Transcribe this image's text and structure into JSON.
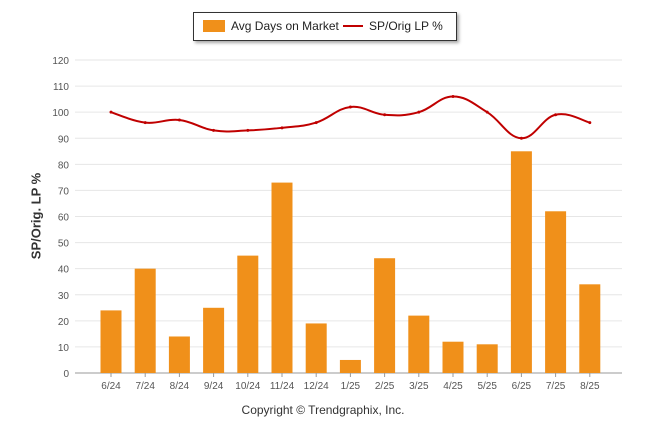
{
  "chart_data": {
    "type": "bar",
    "categories": [
      "6/24",
      "7/24",
      "8/24",
      "9/24",
      "10/24",
      "11/24",
      "12/24",
      "1/25",
      "2/25",
      "3/25",
      "4/25",
      "5/25",
      "6/25",
      "7/25",
      "8/25"
    ],
    "series": [
      {
        "name": "Avg Days on Market",
        "type": "bar",
        "color": "#f0901a",
        "values": [
          24,
          40,
          14,
          25,
          45,
          73,
          19,
          5,
          44,
          22,
          12,
          11,
          85,
          62,
          34
        ]
      },
      {
        "name": "SP/Orig LP %",
        "type": "line",
        "color": "#c00000",
        "values": [
          100,
          96,
          97,
          93,
          93,
          94,
          96,
          102,
          99,
          100,
          106,
          100,
          90,
          99,
          96
        ]
      }
    ],
    "ylabel": "SP/Orig. LP %",
    "xlabel": "",
    "ylim": [
      0,
      120
    ],
    "yticks": [
      0,
      10,
      20,
      30,
      40,
      50,
      60,
      70,
      80,
      90,
      100,
      110,
      120
    ],
    "grid": true,
    "legend_position": "top"
  },
  "legend": {
    "bar_label": "Avg Days on Market",
    "line_label": "SP/Orig LP %"
  },
  "footer": {
    "copyright": "Copyright © Trendgraphix, Inc."
  }
}
